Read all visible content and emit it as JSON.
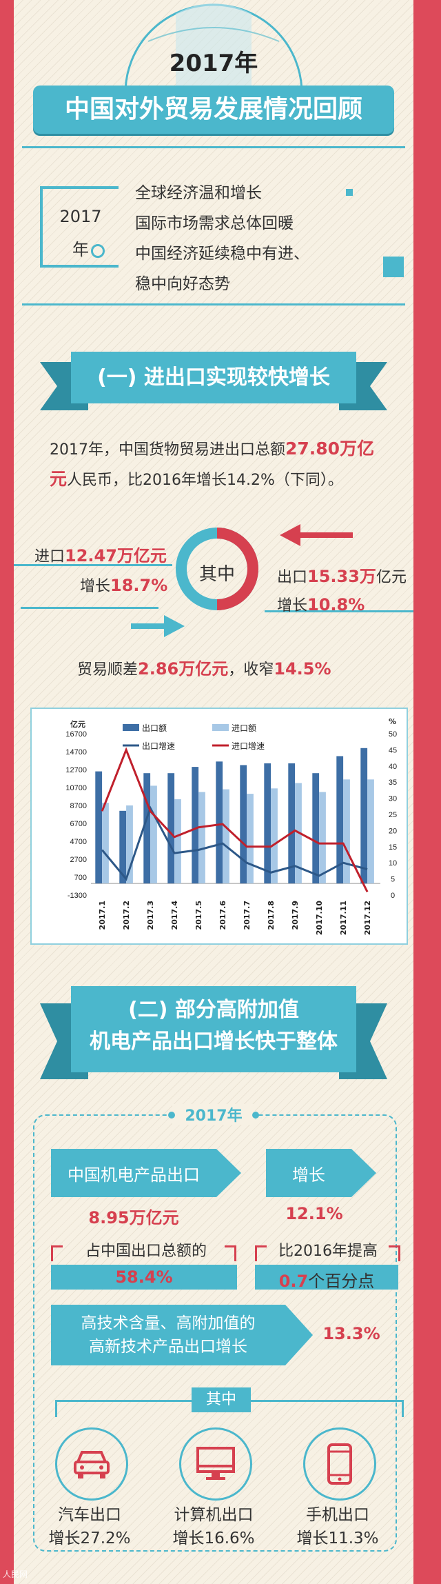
{
  "header": {
    "year": "2017年",
    "title": "中国对外贸易发展情况回顾"
  },
  "intro": {
    "box_year_line1": "2017",
    "box_year_line2": "年",
    "lines": [
      "全球经济温和增长",
      "国际市场需求总体回暖",
      "中国经济延续稳中有进、",
      "稳中向好态势"
    ]
  },
  "section1": {
    "title": "(一) 进出口实现较快增长",
    "summary_a": "2017年，中国货物贸易进出口总额",
    "summary_b": "27.80万亿",
    "summary_c": "元",
    "summary_d": "人民币，比2016年增长14.2%（下同）。",
    "import_prefix": "进口",
    "import_value": "12.47万亿元",
    "import_growth_prefix": "增长",
    "import_growth": "18.7%",
    "center_label": "其中",
    "export_prefix": "出口",
    "export_value": "15.33万",
    "export_unit": "亿元",
    "export_growth_prefix": "增长",
    "export_growth": "10.8%",
    "surplus_a": "贸易顺差",
    "surplus_b": "2.86万亿元",
    "surplus_c": "，收窄",
    "surplus_d": "14.5%"
  },
  "chart_data": {
    "type": "bar",
    "left_unit": "亿元",
    "right_unit": "%",
    "categories": [
      "2017.1",
      "2017.2",
      "2017.3",
      "2017.4",
      "2017.5",
      "2017.6",
      "2017.7",
      "2017.8",
      "2017.9",
      "2017.10",
      "2017.11",
      "2017.12"
    ],
    "yticks_left": [
      "16700",
      "14700",
      "12700",
      "10700",
      "8700",
      "6700",
      "4700",
      "2700",
      "700",
      "-1300"
    ],
    "yticks_right": [
      "50",
      "45",
      "40",
      "35",
      "30",
      "25",
      "20",
      "15",
      "10",
      "5",
      "0"
    ],
    "ylim_left": [
      -1300,
      16700
    ],
    "ylim_right": [
      0,
      50
    ],
    "legend": [
      "出口额",
      "进口额",
      "出口增速",
      "进口增速"
    ],
    "series": [
      {
        "name": "出口额",
        "kind": "bar",
        "color": "#3d6ea5",
        "values": [
          12500,
          8100,
          12300,
          12300,
          13000,
          13600,
          13200,
          13400,
          13400,
          12300,
          14200,
          15100
        ]
      },
      {
        "name": "进口额",
        "kind": "bar",
        "color": "#a7c8e6",
        "values": [
          9000,
          8700,
          10900,
          9400,
          10200,
          10500,
          10000,
          10600,
          11200,
          10200,
          11600,
          11600
        ]
      },
      {
        "name": "出口增速",
        "kind": "line",
        "color": "#2d5888",
        "values": [
          14,
          5,
          27,
          13,
          14,
          16,
          10,
          7,
          9,
          6,
          10,
          8
        ]
      },
      {
        "name": "进口增速",
        "kind": "line",
        "color": "#c0202c",
        "values": [
          26,
          45,
          26,
          18,
          21,
          22,
          15,
          15,
          20,
          16,
          16,
          1
        ]
      }
    ]
  },
  "section2": {
    "title_line1": "(二) 部分高附加值",
    "title_line2": "机电产品出口增长快于整体",
    "year": "2017年",
    "mech_label": "中国机电产品出口",
    "mech_value": "8.95万亿元",
    "growth_label": "增长",
    "growth_value": "12.1%",
    "share_label": "占中国出口总额的",
    "share_value": "58.4%",
    "raise_label": "比2016年提高",
    "raise_value": "0.7",
    "raise_unit": "个百分点",
    "hitech_line1": "高技术含量、高附加值的",
    "hitech_line2": "高新技术产品出口增长",
    "hitech_value": "13.3%",
    "among": "其中",
    "items": [
      {
        "name": "汽车出口",
        "growth": "增长27.2%",
        "icon": "car-icon"
      },
      {
        "name": "计算机出口",
        "growth": "增长16.6%",
        "icon": "computer-icon"
      },
      {
        "name": "手机出口",
        "growth": "增长11.3%",
        "icon": "phone-icon"
      }
    ]
  },
  "watermark": "人民网"
}
